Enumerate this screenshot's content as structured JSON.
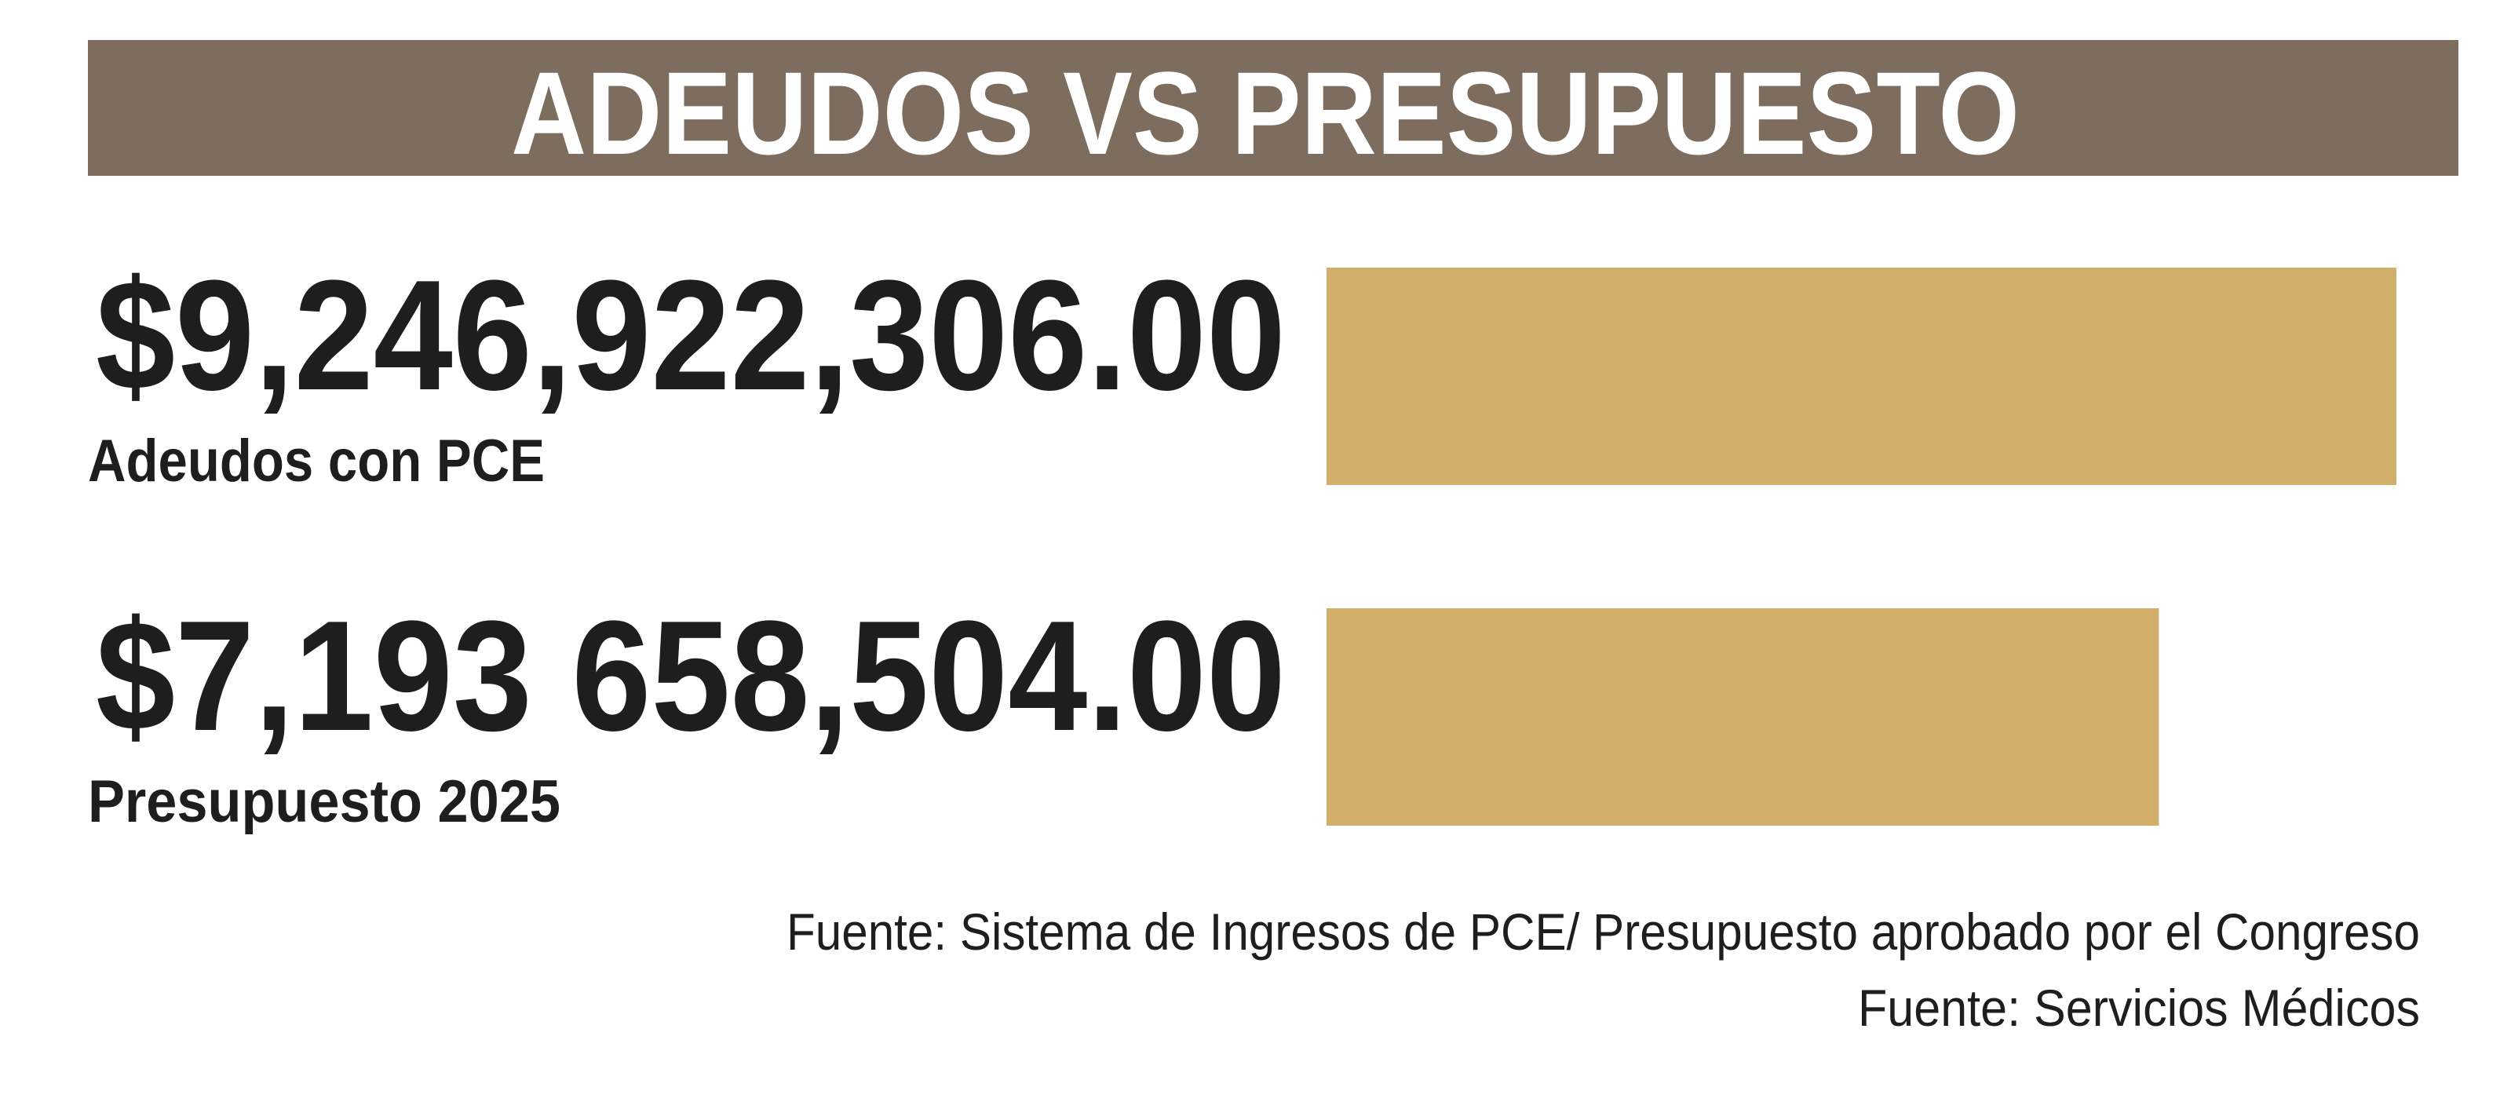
{
  "chart_data": {
    "type": "bar",
    "title": "ADEUDOS VS PRESUPUESTO",
    "categories": [
      "Adeudos con PCE",
      "Presupuesto 2025"
    ],
    "values": [
      9246922306,
      7193658504
    ],
    "value_labels": [
      "$9,246,922,306.00",
      "$7,193 658,504.00"
    ],
    "color": "#d1ae6a",
    "notes": [
      "Fuente: Sistema de Ingresos de PCE/ Presupuesto aprobado por el Congreso",
      "Fuente: Servicios Médicos"
    ]
  }
}
